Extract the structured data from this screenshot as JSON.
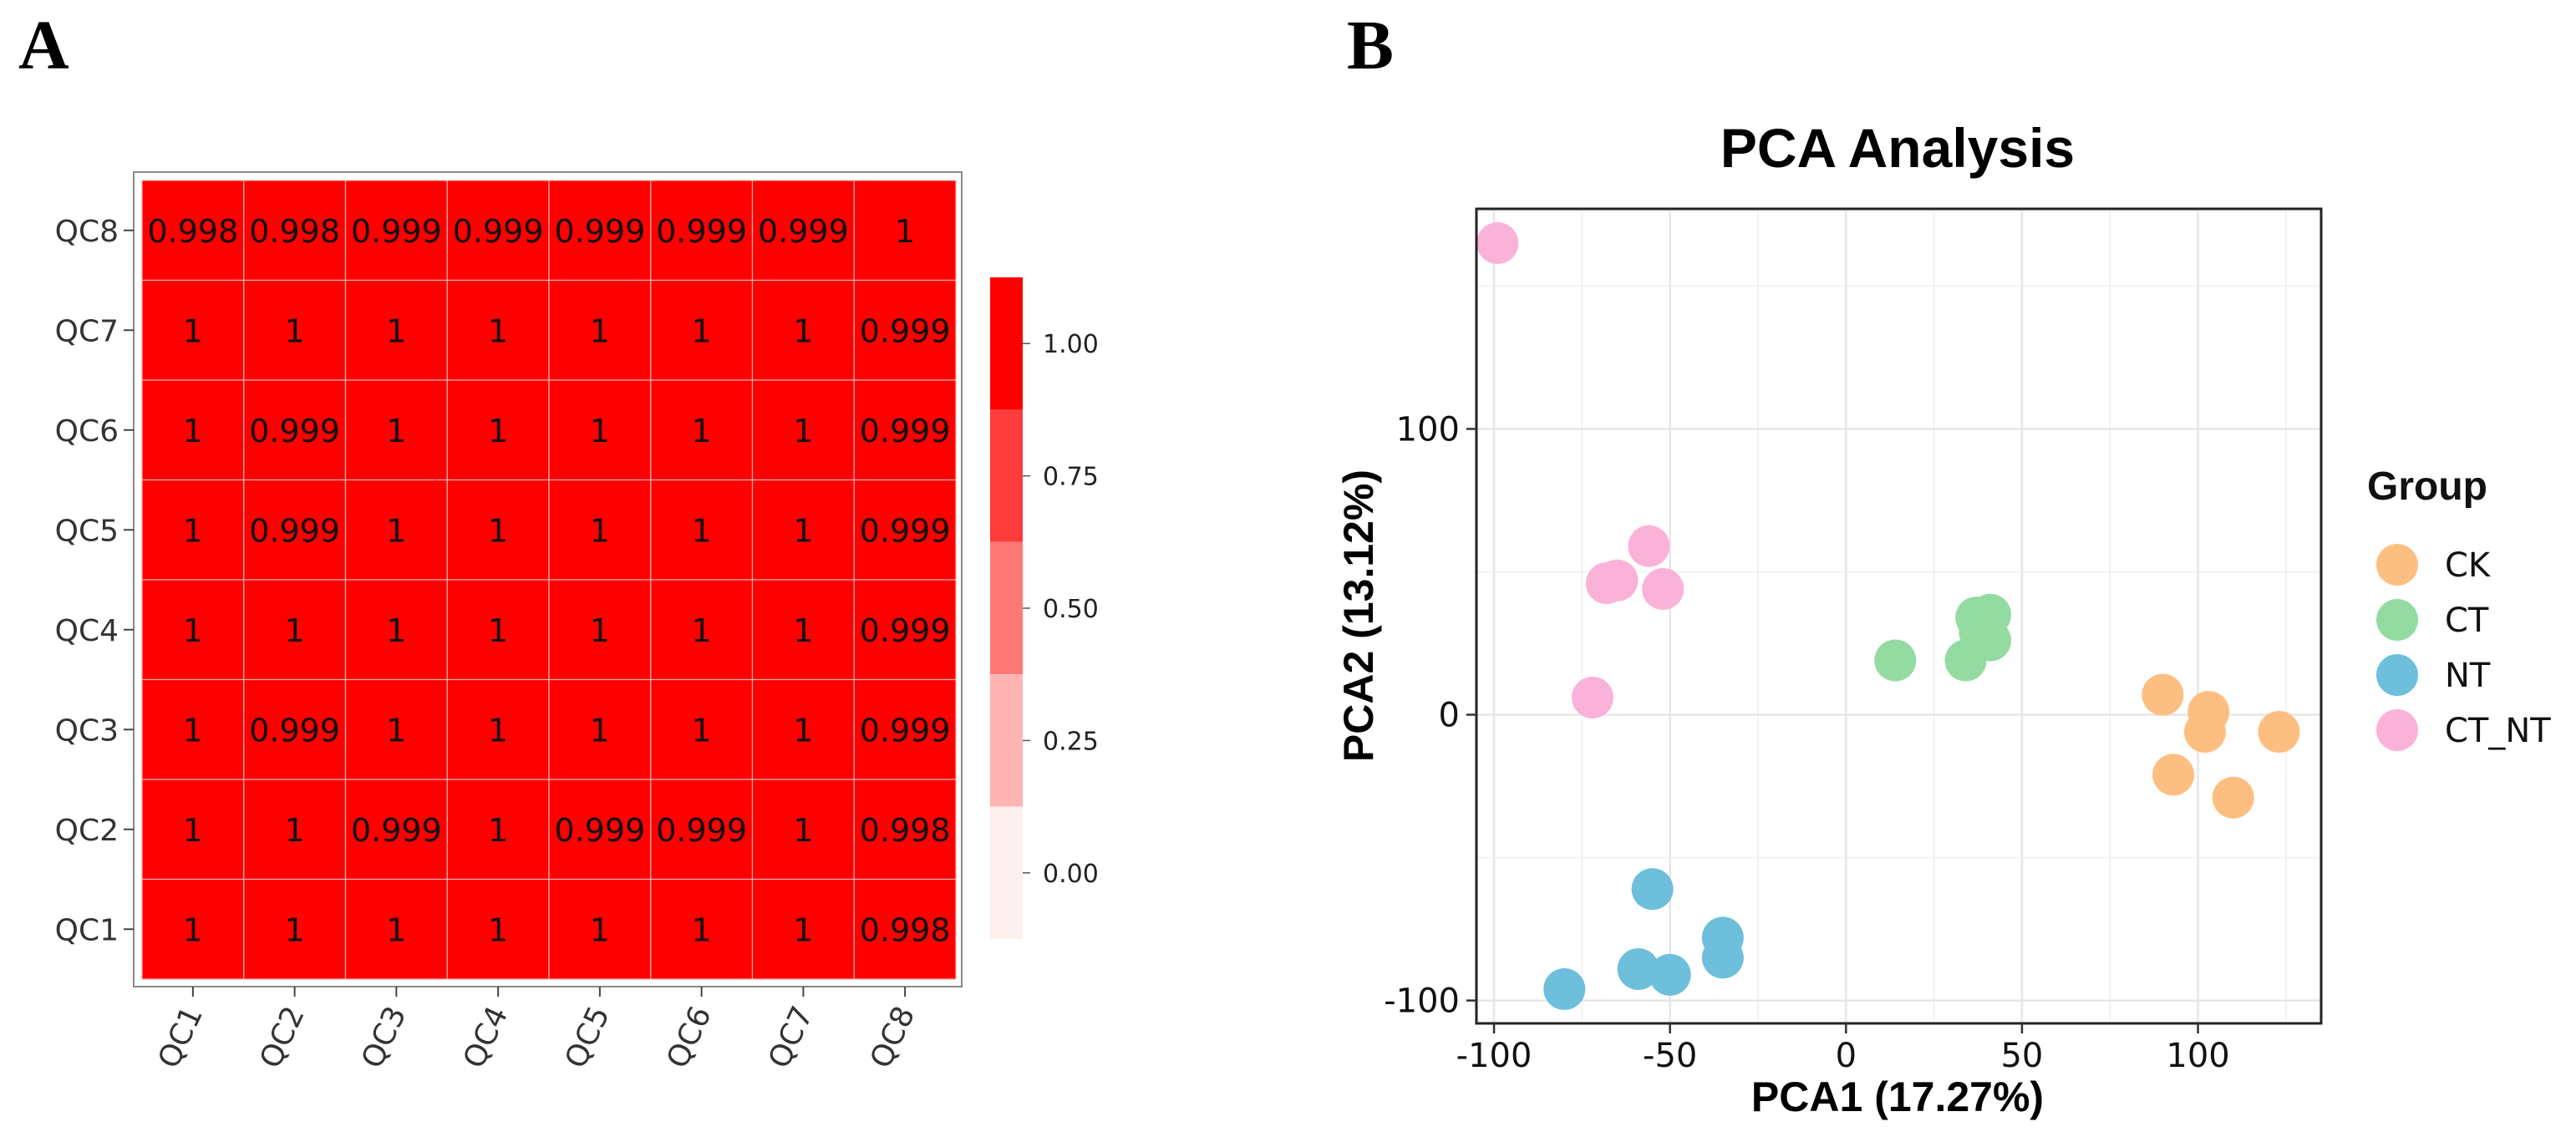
{
  "panels": {
    "a_label": "A",
    "b_label": "B"
  },
  "chart_data": [
    {
      "type": "heatmap",
      "title": "",
      "rows_top_to_bottom": [
        "QC8",
        "QC7",
        "QC6",
        "QC5",
        "QC4",
        "QC3",
        "QC2",
        "QC1"
      ],
      "columns": [
        "QC1",
        "QC2",
        "QC3",
        "QC4",
        "QC5",
        "QC6",
        "QC7",
        "QC8"
      ],
      "values": [
        [
          "0.998",
          "0.998",
          "0.999",
          "0.999",
          "0.999",
          "0.999",
          "0.999",
          "1"
        ],
        [
          "1",
          "1",
          "1",
          "1",
          "1",
          "1",
          "1",
          "0.999"
        ],
        [
          "1",
          "0.999",
          "1",
          "1",
          "1",
          "1",
          "1",
          "0.999"
        ],
        [
          "1",
          "0.999",
          "1",
          "1",
          "1",
          "1",
          "1",
          "0.999"
        ],
        [
          "1",
          "1",
          "1",
          "1",
          "1",
          "1",
          "1",
          "0.999"
        ],
        [
          "1",
          "0.999",
          "1",
          "1",
          "1",
          "1",
          "1",
          "0.999"
        ],
        [
          "1",
          "1",
          "0.999",
          "1",
          "0.999",
          "0.999",
          "1",
          "0.998"
        ],
        [
          "1",
          "1",
          "1",
          "1",
          "1",
          "1",
          "1",
          "0.998"
        ]
      ],
      "cell_color": "#ff0000",
      "legend": {
        "bins": [
          {
            "label": "1.00",
            "color": "#ff0000"
          },
          {
            "label": "0.75",
            "color": "#ff3c3c"
          },
          {
            "label": "0.50",
            "color": "#ff7878"
          },
          {
            "label": "0.25",
            "color": "#ffb4b4"
          },
          {
            "label": "0.00",
            "color": "#fff0f0"
          }
        ]
      }
    },
    {
      "type": "scatter",
      "title": "PCA Analysis",
      "xlabel": "PCA1 (17.27%)",
      "ylabel": "PCA2 (13.12%)",
      "xlim": [
        -105,
        135
      ],
      "ylim": [
        -108,
        177
      ],
      "xticks": [
        -100,
        -50,
        0,
        50,
        100
      ],
      "yticks": [
        -100,
        0,
        100
      ],
      "grid": true,
      "legend_title": "Group",
      "series": [
        {
          "name": "CK",
          "color": "#fdbf81",
          "points": [
            [
              90,
              7
            ],
            [
              93,
              -21
            ],
            [
              103,
              1
            ],
            [
              102,
              -6
            ],
            [
              110,
              -29
            ],
            [
              123,
              -6
            ]
          ]
        },
        {
          "name": "CT",
          "color": "#94dba2",
          "points": [
            [
              14,
              19
            ],
            [
              34,
              19
            ],
            [
              37,
              34
            ],
            [
              41,
              35
            ],
            [
              38,
              29
            ],
            [
              41,
              26
            ]
          ]
        },
        {
          "name": "NT",
          "color": "#6dbfdc",
          "points": [
            [
              -55,
              -61
            ],
            [
              -80,
              -96
            ],
            [
              -59,
              -89
            ],
            [
              -50,
              -91
            ],
            [
              -35,
              -78
            ],
            [
              -35,
              -85
            ]
          ]
        },
        {
          "name": "CT_NT",
          "color": "#fbb2d9",
          "points": [
            [
              -99,
              165
            ],
            [
              -56,
              59
            ],
            [
              -68,
              46
            ],
            [
              -65,
              47
            ],
            [
              -52,
              44
            ],
            [
              -72,
              6
            ]
          ]
        }
      ]
    }
  ]
}
